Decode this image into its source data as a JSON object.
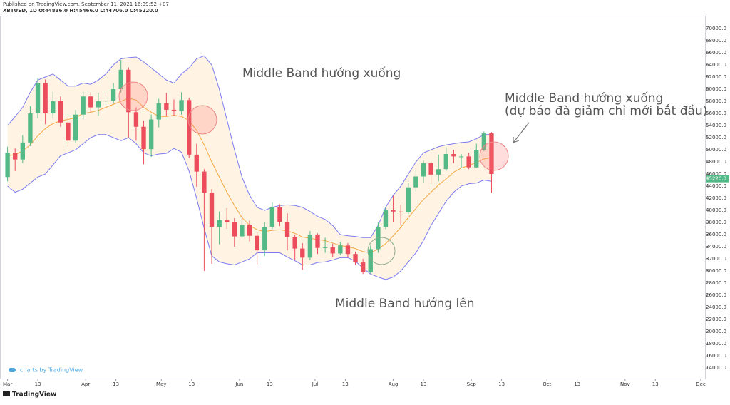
{
  "chart_data": {
    "type": "candlestick",
    "header": "Published on TradingView.com, September 11, 2021 16:39:52 +07",
    "title": "XBTUSD, 1D O:44836.0 H:45466.0 L:44706.0 C:45220.0",
    "annotations": [
      "Middle Band hướng xuống",
      "Middle Band hướng xuống",
      "(dự báo đà giảm chỉ mới bắt đầu)",
      "Middle Band hướng lên"
    ],
    "watermark": "charts by TradingView",
    "footer": "TradingView",
    "up_color": "#53b987",
    "down_color": "#eb4d5c",
    "band_color": "#7b7bf0",
    "middle_color": "#f5a742",
    "fill_color": "#fff4e3",
    "x": [
      "2021-03-01",
      "2021-03-04",
      "2021-03-07",
      "2021-03-10",
      "2021-03-13",
      "2021-03-16",
      "2021-03-19",
      "2021-03-22",
      "2021-03-25",
      "2021-03-28",
      "2021-03-31",
      "2021-04-03",
      "2021-04-06",
      "2021-04-09",
      "2021-04-12",
      "2021-04-15",
      "2021-04-18",
      "2021-04-21",
      "2021-04-24",
      "2021-04-27",
      "2021-04-30",
      "2021-05-03",
      "2021-05-06",
      "2021-05-09",
      "2021-05-12",
      "2021-05-15",
      "2021-05-18",
      "2021-05-21",
      "2021-05-24",
      "2021-05-27",
      "2021-05-30",
      "2021-06-02",
      "2021-06-05",
      "2021-06-08",
      "2021-06-11",
      "2021-06-14",
      "2021-06-17",
      "2021-06-20",
      "2021-06-23",
      "2021-06-26",
      "2021-06-29",
      "2021-07-02",
      "2021-07-05",
      "2021-07-08",
      "2021-07-11",
      "2021-07-14",
      "2021-07-17",
      "2021-07-20",
      "2021-07-23",
      "2021-07-26",
      "2021-07-29",
      "2021-08-01",
      "2021-08-04",
      "2021-08-07",
      "2021-08-10",
      "2021-08-13",
      "2021-08-16",
      "2021-08-19",
      "2021-08-22",
      "2021-08-25",
      "2021-08-28",
      "2021-08-31",
      "2021-09-03",
      "2021-09-06",
      "2021-09-09"
    ],
    "open": [
      45500,
      49500,
      48400,
      51200,
      56000,
      61000,
      56000,
      58000,
      54500,
      51500,
      55800,
      58800,
      57000,
      58000,
      58100,
      60000,
      63200,
      56200,
      53800,
      50100,
      55000,
      57700,
      56600,
      56400,
      58200,
      49200,
      46400,
      42900,
      37300,
      38400,
      38000,
      35700,
      37600,
      35800,
      33400,
      37300,
      40500,
      38100,
      35600,
      33700,
      32200,
      36000,
      33800,
      33900,
      32900,
      34200,
      32800,
      31400,
      29800,
      33600,
      37300,
      40000,
      39800,
      39700,
      43800,
      45600,
      47800,
      45900,
      46800,
      49300,
      48900,
      48900,
      47100,
      50000,
      52700
    ],
    "high": [
      50500,
      50200,
      52400,
      57200,
      61800,
      61600,
      59600,
      58800,
      55600,
      56600,
      59600,
      59500,
      59400,
      59000,
      61000,
      64800,
      63600,
      57000,
      54800,
      55800,
      58400,
      59400,
      58300,
      59500,
      58600,
      51000,
      46800,
      43500,
      39800,
      40400,
      38700,
      39200,
      38300,
      36500,
      38000,
      41300,
      41000,
      39500,
      36000,
      34600,
      36600,
      36200,
      35500,
      34500,
      34800,
      34600,
      33200,
      32000,
      34200,
      38000,
      40600,
      42400,
      40900,
      44600,
      46600,
      48200,
      48100,
      49200,
      50400,
      50000,
      49300,
      49500,
      51000,
      53000,
      52900
    ],
    "low": [
      44800,
      46500,
      47800,
      50600,
      55200,
      54200,
      55200,
      53800,
      50500,
      51200,
      55000,
      56000,
      55600,
      57000,
      57600,
      59400,
      52000,
      51500,
      47600,
      48800,
      53700,
      55500,
      55600,
      55800,
      48600,
      43900,
      30000,
      31200,
      34400,
      37000,
      34000,
      35500,
      34900,
      31100,
      32500,
      36900,
      37400,
      33400,
      31800,
      30200,
      31800,
      32800,
      33000,
      32300,
      32600,
      32300,
      31000,
      29500,
      29600,
      33000,
      36900,
      38000,
      37600,
      39400,
      43100,
      44600,
      44300,
      44800,
      46500,
      47800,
      47000,
      46800,
      47000,
      49800,
      42900
    ],
    "close": [
      49500,
      48400,
      51200,
      56000,
      61000,
      56000,
      58000,
      54500,
      51500,
      55800,
      58800,
      57000,
      58000,
      58100,
      60000,
      63200,
      56200,
      53800,
      50100,
      55000,
      57700,
      56600,
      56400,
      58200,
      49200,
      46400,
      42900,
      37300,
      38400,
      38000,
      35700,
      37600,
      35800,
      33400,
      37300,
      40500,
      38100,
      35600,
      33700,
      32200,
      36000,
      33800,
      33900,
      32900,
      34200,
      32800,
      31400,
      29800,
      33600,
      37300,
      40000,
      39800,
      39700,
      43800,
      45600,
      47800,
      45900,
      46800,
      49300,
      48900,
      48900,
      47100,
      50000,
      52700,
      46000
    ],
    "upper": [
      54000,
      55500,
      57000,
      59500,
      61500,
      62000,
      62500,
      61500,
      60500,
      60500,
      61000,
      60800,
      61500,
      62500,
      64000,
      65000,
      65200,
      65300,
      64500,
      63500,
      62500,
      61500,
      61000,
      62500,
      63500,
      65000,
      65500,
      64000,
      60000,
      55000,
      50000,
      45500,
      42500,
      40500,
      40000,
      40500,
      40800,
      40900,
      40800,
      40500,
      39800,
      39000,
      38500,
      37500,
      36000,
      35800,
      35700,
      35500,
      35500,
      37500,
      40500,
      42500,
      44000,
      46000,
      48000,
      49500,
      50000,
      50500,
      50800,
      51000,
      51200,
      51300,
      51800,
      52500,
      52500
    ],
    "middle": [
      49000,
      49200,
      49800,
      50800,
      52300,
      53500,
      54300,
      54800,
      55000,
      55300,
      56000,
      56200,
      56500,
      57000,
      57500,
      58000,
      58500,
      58200,
      57000,
      56200,
      55500,
      55500,
      55700,
      55500,
      54800,
      53200,
      50800,
      48000,
      45500,
      43000,
      40800,
      38800,
      37500,
      36800,
      36500,
      36700,
      36800,
      36600,
      36200,
      35600,
      35400,
      35200,
      35000,
      34600,
      34200,
      34000,
      33700,
      33200,
      33000,
      33600,
      34500,
      35800,
      37200,
      38800,
      40300,
      41800,
      43000,
      44200,
      45200,
      46300,
      47000,
      47400,
      47900,
      48500,
      48700
    ],
    "lower": [
      44000,
      43000,
      43500,
      44500,
      45500,
      46000,
      47500,
      49000,
      49500,
      50000,
      51000,
      52000,
      52500,
      52500,
      52000,
      51500,
      52000,
      51000,
      49500,
      49000,
      49300,
      49400,
      50200,
      49600,
      46500,
      42000,
      37000,
      32500,
      31500,
      31200,
      31000,
      31500,
      32000,
      33000,
      33000,
      33000,
      33000,
      32300,
      31700,
      31000,
      31000,
      31400,
      31500,
      31800,
      32200,
      32200,
      31600,
      30500,
      29500,
      29000,
      28600,
      29000,
      30000,
      31500,
      33000,
      35000,
      37500,
      39500,
      41500,
      43000,
      44000,
      44400,
      44500,
      45000,
      44800
    ],
    "xlim": [
      "2021-02-26",
      "2021-12-03"
    ],
    "xticks": [
      {
        "value": "2021-03-01",
        "label": "Mar"
      },
      {
        "value": "2021-03-13",
        "label": "13"
      },
      {
        "value": "2021-04-01",
        "label": "Apr"
      },
      {
        "value": "2021-04-13",
        "label": "13"
      },
      {
        "value": "2021-05-01",
        "label": "May"
      },
      {
        "value": "2021-05-13",
        "label": "13"
      },
      {
        "value": "2021-06-01",
        "label": "Jun"
      },
      {
        "value": "2021-06-13",
        "label": "13"
      },
      {
        "value": "2021-07-01",
        "label": "Jul"
      },
      {
        "value": "2021-07-13",
        "label": "13"
      },
      {
        "value": "2021-08-01",
        "label": "Aug"
      },
      {
        "value": "2021-08-13",
        "label": "13"
      },
      {
        "value": "2021-09-01",
        "label": "Sep"
      },
      {
        "value": "2021-09-13",
        "label": "13"
      },
      {
        "value": "2021-10-01",
        "label": "Oct"
      },
      {
        "value": "2021-10-13",
        "label": "13"
      },
      {
        "value": "2021-11-01",
        "label": "Nov"
      },
      {
        "value": "2021-11-13",
        "label": "13"
      },
      {
        "value": "2021-12-01",
        "label": "Dec"
      }
    ],
    "ylim": [
      12240,
      72120
    ],
    "yticks": [
      {
        "value": 14000,
        "label": "14000.0"
      },
      {
        "value": 16000,
        "label": "16000.0"
      },
      {
        "value": 18000,
        "label": "18000.0"
      },
      {
        "value": 20000,
        "label": "20000.0"
      },
      {
        "value": 22000,
        "label": "22000.0"
      },
      {
        "value": 24000,
        "label": "24000.0"
      },
      {
        "value": 26000,
        "label": "26000.0"
      },
      {
        "value": 28000,
        "label": "28000.0"
      },
      {
        "value": 30000,
        "label": "30000.0"
      },
      {
        "value": 32000,
        "label": "32000.0"
      },
      {
        "value": 34000,
        "label": "34000.0"
      },
      {
        "value": 36000,
        "label": "36000.0"
      },
      {
        "value": 38000,
        "label": "38000.0"
      },
      {
        "value": 40000,
        "label": "40000.0"
      },
      {
        "value": 42000,
        "label": "42000.0"
      },
      {
        "value": 44000,
        "label": "44000.0"
      },
      {
        "value": 46000,
        "label": "46000.0"
      },
      {
        "value": 48000,
        "label": "48000.0"
      },
      {
        "value": 50000,
        "label": "50000.0"
      },
      {
        "value": 52000,
        "label": "52000.0"
      },
      {
        "value": 54000,
        "label": "54000.0"
      },
      {
        "value": 56000,
        "label": "56000.0"
      },
      {
        "value": 58000,
        "label": "58000.0"
      },
      {
        "value": 60000,
        "label": "60000.0"
      },
      {
        "value": 62000,
        "label": "62000.0"
      },
      {
        "value": 64000,
        "label": "64000.0"
      },
      {
        "value": 66000,
        "label": "66000.0"
      },
      {
        "value": 68000,
        "label": "68000.0"
      },
      {
        "value": 70000,
        "label": "70000.0"
      }
    ],
    "last_price": {
      "value": 45220,
      "label": "45220.0"
    }
  }
}
